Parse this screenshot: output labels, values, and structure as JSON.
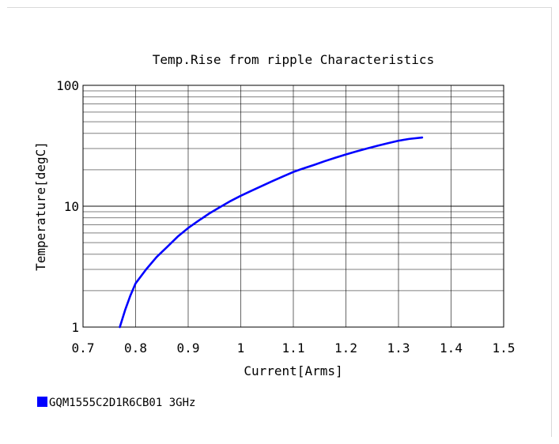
{
  "chart_data": {
    "type": "line",
    "title": "Temp.Rise from ripple Characteristics",
    "xlabel": "Current[Arms]",
    "ylabel": "Temperature[degC]",
    "xlim": [
      0.7,
      1.5
    ],
    "ylim": [
      1,
      100
    ],
    "yscale": "log",
    "grid": true,
    "legend_position": "bottom-left",
    "x_ticks": [
      "0.7",
      "0.8",
      "0.9",
      "1",
      "1.1",
      "1.2",
      "1.3",
      "1.4",
      "1.5"
    ],
    "y_ticks": [
      "1",
      "10",
      "100"
    ],
    "series": [
      {
        "name": "GQM1555C2D1R6CB01 3GHz",
        "color": "#0000ff",
        "x": [
          0.77,
          0.78,
          0.79,
          0.8,
          0.82,
          0.84,
          0.86,
          0.88,
          0.9,
          0.92,
          0.94,
          0.96,
          0.98,
          1.0,
          1.02,
          1.04,
          1.06,
          1.08,
          1.1,
          1.12,
          1.14,
          1.16,
          1.18,
          1.2,
          1.22,
          1.24,
          1.26,
          1.28,
          1.3,
          1.32,
          1.345
        ],
        "y": [
          1.0,
          1.38,
          1.82,
          2.3,
          3.0,
          3.8,
          4.6,
          5.6,
          6.6,
          7.6,
          8.7,
          9.8,
          11.0,
          12.2,
          13.4,
          14.7,
          16.1,
          17.6,
          19.2,
          20.6,
          22.0,
          23.6,
          25.2,
          26.8,
          28.4,
          30.0,
          31.6,
          33.2,
          34.8,
          36.0,
          37.0
        ]
      }
    ]
  }
}
